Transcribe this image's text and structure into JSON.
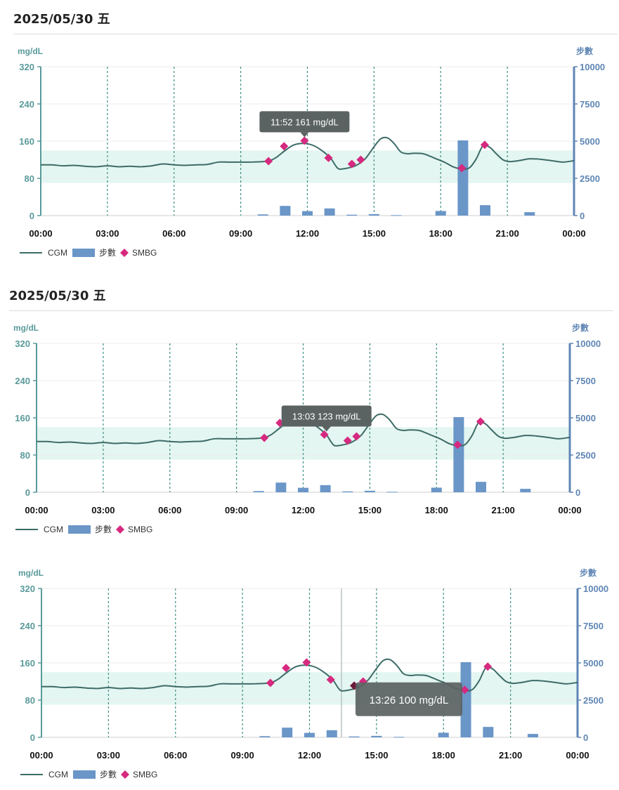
{
  "panels": [
    {
      "date_label": "2025/05/30 五",
      "tooltip": "11:52 161 mg/dL",
      "tooltip_x": 11.87,
      "tooltip_value": 161,
      "tooltip_style": "above",
      "crosshair": null
    },
    {
      "date_label": "2025/05/30 五",
      "tooltip": "13:03 123 mg/dL",
      "tooltip_x": 13.05,
      "tooltip_value": 123,
      "tooltip_style": "above",
      "crosshair": null
    },
    {
      "date_label": "",
      "tooltip": "13:26 100 mg/dL",
      "tooltip_x": 13.43,
      "tooltip_value": 100,
      "tooltip_style": "box",
      "crosshair": 13.43
    }
  ],
  "colors": {
    "cgm": "#3d6b67",
    "steps": "#6a96c8",
    "smbg": "#d6297f",
    "target_band": "#e4f6f1",
    "grid_dashed": "#3f8f84",
    "left_axis": "#5a9a9a",
    "right_axis": "#5f86b5",
    "tooltip_bg": "#5b6262"
  },
  "chart_data": {
    "type": "line",
    "left_axis_title": "mg/dL",
    "right_axis_title": "步數",
    "y_ticks": [
      "0",
      "80",
      "160",
      "240",
      "320"
    ],
    "y_range": [
      0,
      320
    ],
    "y2_ticks": [
      "0",
      "2500",
      "5000",
      "7500",
      "10000"
    ],
    "y2_range": [
      0,
      10000
    ],
    "x_ticks": [
      "00:00",
      "03:00",
      "06:00",
      "09:00",
      "12:00",
      "15:00",
      "18:00",
      "21:00",
      "00:00"
    ],
    "x_range": [
      0,
      24
    ],
    "target_range": [
      70,
      140
    ],
    "legend": [
      "CGM",
      "步數",
      "SMBG"
    ],
    "series": [
      {
        "name": "CGM",
        "type": "line",
        "points": [
          [
            0,
            109
          ],
          [
            0.5,
            109
          ],
          [
            1,
            107
          ],
          [
            1.5,
            108
          ],
          [
            2,
            106
          ],
          [
            2.5,
            105
          ],
          [
            3,
            107
          ],
          [
            3.5,
            105
          ],
          [
            4,
            106
          ],
          [
            4.5,
            105
          ],
          [
            5,
            107
          ],
          [
            5.5,
            111
          ],
          [
            6,
            109
          ],
          [
            6.5,
            108
          ],
          [
            7,
            109
          ],
          [
            7.5,
            110
          ],
          [
            8,
            115
          ],
          [
            8.5,
            115
          ],
          [
            9,
            115
          ],
          [
            9.5,
            115
          ],
          [
            10,
            116
          ],
          [
            10.3,
            118
          ],
          [
            10.6,
            125
          ],
          [
            11,
            140
          ],
          [
            11.4,
            152
          ],
          [
            11.87,
            155
          ],
          [
            12.3,
            150
          ],
          [
            12.7,
            138
          ],
          [
            13.05,
            123
          ],
          [
            13.26,
            108
          ],
          [
            13.43,
            100
          ],
          [
            13.8,
            102
          ],
          [
            14.2,
            108
          ],
          [
            14.6,
            122
          ],
          [
            15,
            148
          ],
          [
            15.3,
            165
          ],
          [
            15.6,
            167
          ],
          [
            15.9,
            155
          ],
          [
            16.2,
            137
          ],
          [
            16.5,
            133
          ],
          [
            16.8,
            134
          ],
          [
            17.2,
            133
          ],
          [
            17.5,
            128
          ],
          [
            17.8,
            122
          ],
          [
            18.2,
            114
          ],
          [
            18.6,
            104
          ],
          [
            19,
            100
          ],
          [
            19.3,
            103
          ],
          [
            19.6,
            122
          ],
          [
            19.9,
            150
          ],
          [
            20.2,
            147
          ],
          [
            20.5,
            133
          ],
          [
            20.8,
            120
          ],
          [
            21.1,
            116
          ],
          [
            21.5,
            118
          ],
          [
            22,
            122
          ],
          [
            22.5,
            121
          ],
          [
            23,
            118
          ],
          [
            23.5,
            115
          ],
          [
            24,
            118
          ]
        ]
      },
      {
        "name": "步數",
        "type": "bar",
        "axis": "right",
        "points": [
          [
            10,
            80
          ],
          [
            11,
            650
          ],
          [
            12,
            300
          ],
          [
            13,
            480
          ],
          [
            14,
            60
          ],
          [
            15,
            100
          ],
          [
            16,
            30
          ],
          [
            18,
            310
          ],
          [
            19,
            5050
          ],
          [
            20,
            700
          ],
          [
            22,
            230
          ]
        ]
      },
      {
        "name": "SMBG",
        "type": "scatter",
        "points": [
          [
            10.25,
            117
          ],
          [
            10.95,
            149
          ],
          [
            11.87,
            161
          ],
          [
            12.95,
            124
          ],
          [
            14.0,
            111
          ],
          [
            14.4,
            120
          ],
          [
            18.95,
            102
          ],
          [
            19.98,
            152
          ]
        ]
      }
    ]
  }
}
